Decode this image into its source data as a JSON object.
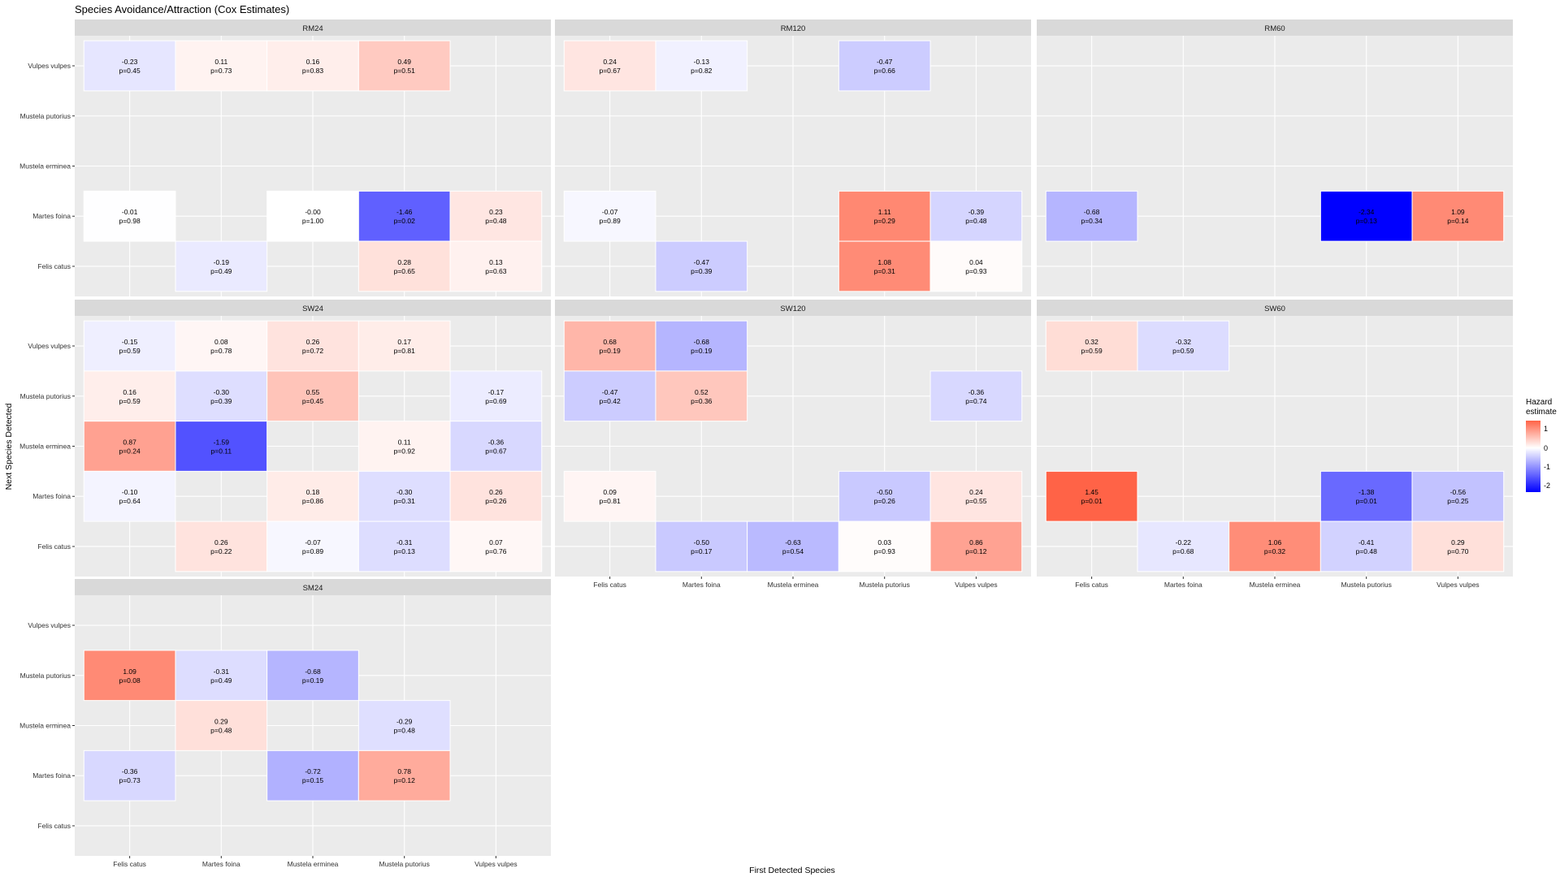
{
  "title": "Species Avoidance/Attraction (Cox Estimates)",
  "chart_data": {
    "type": "heatmap",
    "title": "Species Avoidance/Attraction (Cox Estimates)",
    "xlabel": "First Detected Species",
    "ylabel": "Next Species Detected",
    "x_categories": [
      "Felis catus",
      "Martes foina",
      "Mustela erminea",
      "Mustela putorius",
      "Vulpes vulpes"
    ],
    "y_categories": [
      "Vulpes vulpes",
      "Mustela putorius",
      "Mustela erminea",
      "Martes foina",
      "Felis catus"
    ],
    "legend": {
      "title_lines": [
        "Hazard",
        "estimate"
      ],
      "ticks": [
        "1",
        "0",
        "-1",
        "-2"
      ],
      "tick_values": [
        1,
        0,
        -1,
        -2
      ],
      "range": [
        -2.34,
        1.45
      ],
      "colors": {
        "low": "#0000ff",
        "mid": "#ffffff",
        "high": "#ff6347"
      }
    },
    "panels": [
      {
        "name": "RM24",
        "cells": [
          {
            "x": "Felis catus",
            "y": "Vulpes vulpes",
            "estimate": -0.23,
            "label": "-0.23",
            "p": "p=0.45"
          },
          {
            "x": "Martes foina",
            "y": "Vulpes vulpes",
            "estimate": 0.11,
            "label": "0.11",
            "p": "p=0.73"
          },
          {
            "x": "Mustela erminea",
            "y": "Vulpes vulpes",
            "estimate": 0.16,
            "label": "0.16",
            "p": "p=0.83"
          },
          {
            "x": "Mustela putorius",
            "y": "Vulpes vulpes",
            "estimate": 0.49,
            "label": "0.49",
            "p": "p=0.51"
          },
          {
            "x": "Felis catus",
            "y": "Martes foina",
            "estimate": -0.01,
            "label": "-0.01",
            "p": "p=0.98"
          },
          {
            "x": "Mustela erminea",
            "y": "Martes foina",
            "estimate": 0.0,
            "label": "-0.00",
            "p": "p=1.00"
          },
          {
            "x": "Mustela putorius",
            "y": "Martes foina",
            "estimate": -1.46,
            "label": "-1.46",
            "p": "p=0.02"
          },
          {
            "x": "Vulpes vulpes",
            "y": "Martes foina",
            "estimate": 0.23,
            "label": "0.23",
            "p": "p=0.48"
          },
          {
            "x": "Martes foina",
            "y": "Felis catus",
            "estimate": -0.19,
            "label": "-0.19",
            "p": "p=0.49"
          },
          {
            "x": "Mustela putorius",
            "y": "Felis catus",
            "estimate": 0.28,
            "label": "0.28",
            "p": "p=0.65"
          },
          {
            "x": "Vulpes vulpes",
            "y": "Felis catus",
            "estimate": 0.13,
            "label": "0.13",
            "p": "p=0.63"
          }
        ]
      },
      {
        "name": "RM120",
        "cells": [
          {
            "x": "Felis catus",
            "y": "Vulpes vulpes",
            "estimate": 0.24,
            "label": "0.24",
            "p": "p=0.67"
          },
          {
            "x": "Martes foina",
            "y": "Vulpes vulpes",
            "estimate": -0.13,
            "label": "-0.13",
            "p": "p=0.82"
          },
          {
            "x": "Mustela putorius",
            "y": "Vulpes vulpes",
            "estimate": -0.47,
            "label": "-0.47",
            "p": "p=0.66"
          },
          {
            "x": "Felis catus",
            "y": "Martes foina",
            "estimate": -0.07,
            "label": "-0.07",
            "p": "p=0.89"
          },
          {
            "x": "Mustela putorius",
            "y": "Martes foina",
            "estimate": 1.11,
            "label": "1.11",
            "p": "p=0.29"
          },
          {
            "x": "Vulpes vulpes",
            "y": "Martes foina",
            "estimate": -0.39,
            "label": "-0.39",
            "p": "p=0.48"
          },
          {
            "x": "Martes foina",
            "y": "Felis catus",
            "estimate": -0.47,
            "label": "-0.47",
            "p": "p=0.39"
          },
          {
            "x": "Mustela putorius",
            "y": "Felis catus",
            "estimate": 1.08,
            "label": "1.08",
            "p": "p=0.31"
          },
          {
            "x": "Vulpes vulpes",
            "y": "Felis catus",
            "estimate": 0.04,
            "label": "0.04",
            "p": "p=0.93"
          }
        ]
      },
      {
        "name": "RM60",
        "cells": [
          {
            "x": "Felis catus",
            "y": "Martes foina",
            "estimate": -0.68,
            "label": "-0.68",
            "p": "p=0.34"
          },
          {
            "x": "Mustela putorius",
            "y": "Martes foina",
            "estimate": -2.34,
            "label": "-2.34",
            "p": "p=0.13"
          },
          {
            "x": "Vulpes vulpes",
            "y": "Martes foina",
            "estimate": 1.09,
            "label": "1.09",
            "p": "p=0.14"
          }
        ]
      },
      {
        "name": "SW24",
        "cells": [
          {
            "x": "Felis catus",
            "y": "Vulpes vulpes",
            "estimate": -0.15,
            "label": "-0.15",
            "p": "p=0.59"
          },
          {
            "x": "Martes foina",
            "y": "Vulpes vulpes",
            "estimate": 0.08,
            "label": "0.08",
            "p": "p=0.78"
          },
          {
            "x": "Mustela erminea",
            "y": "Vulpes vulpes",
            "estimate": 0.26,
            "label": "0.26",
            "p": "p=0.72"
          },
          {
            "x": "Mustela putorius",
            "y": "Vulpes vulpes",
            "estimate": 0.17,
            "label": "0.17",
            "p": "p=0.81"
          },
          {
            "x": "Felis catus",
            "y": "Mustela putorius",
            "estimate": 0.16,
            "label": "0.16",
            "p": "p=0.59"
          },
          {
            "x": "Martes foina",
            "y": "Mustela putorius",
            "estimate": -0.3,
            "label": "-0.30",
            "p": "p=0.39"
          },
          {
            "x": "Mustela erminea",
            "y": "Mustela putorius",
            "estimate": 0.55,
            "label": "0.55",
            "p": "p=0.45"
          },
          {
            "x": "Vulpes vulpes",
            "y": "Mustela putorius",
            "estimate": -0.17,
            "label": "-0.17",
            "p": "p=0.69"
          },
          {
            "x": "Felis catus",
            "y": "Mustela erminea",
            "estimate": 0.87,
            "label": "0.87",
            "p": "p=0.24"
          },
          {
            "x": "Martes foina",
            "y": "Mustela erminea",
            "estimate": -1.59,
            "label": "-1.59",
            "p": "p=0.11"
          },
          {
            "x": "Mustela putorius",
            "y": "Mustela erminea",
            "estimate": 0.11,
            "label": "0.11",
            "p": "p=0.92"
          },
          {
            "x": "Vulpes vulpes",
            "y": "Mustela erminea",
            "estimate": -0.36,
            "label": "-0.36",
            "p": "p=0.67"
          },
          {
            "x": "Felis catus",
            "y": "Martes foina",
            "estimate": -0.1,
            "label": "-0.10",
            "p": "p=0.64"
          },
          {
            "x": "Mustela erminea",
            "y": "Martes foina",
            "estimate": 0.18,
            "label": "0.18",
            "p": "p=0.86"
          },
          {
            "x": "Mustela putorius",
            "y": "Martes foina",
            "estimate": -0.3,
            "label": "-0.30",
            "p": "p=0.31"
          },
          {
            "x": "Vulpes vulpes",
            "y": "Martes foina",
            "estimate": 0.26,
            "label": "0.26",
            "p": "p=0.26"
          },
          {
            "x": "Martes foina",
            "y": "Felis catus",
            "estimate": 0.26,
            "label": "0.26",
            "p": "p=0.22"
          },
          {
            "x": "Mustela erminea",
            "y": "Felis catus",
            "estimate": -0.07,
            "label": "-0.07",
            "p": "p=0.89"
          },
          {
            "x": "Mustela putorius",
            "y": "Felis catus",
            "estimate": -0.31,
            "label": "-0.31",
            "p": "p=0.13"
          },
          {
            "x": "Vulpes vulpes",
            "y": "Felis catus",
            "estimate": 0.07,
            "label": "0.07",
            "p": "p=0.76"
          }
        ]
      },
      {
        "name": "SW120",
        "cells": [
          {
            "x": "Felis catus",
            "y": "Vulpes vulpes",
            "estimate": 0.68,
            "label": "0.68",
            "p": "p=0.19"
          },
          {
            "x": "Martes foina",
            "y": "Vulpes vulpes",
            "estimate": -0.68,
            "label": "-0.68",
            "p": "p=0.19"
          },
          {
            "x": "Felis catus",
            "y": "Mustela putorius",
            "estimate": -0.47,
            "label": "-0.47",
            "p": "p=0.42"
          },
          {
            "x": "Martes foina",
            "y": "Mustela putorius",
            "estimate": 0.52,
            "label": "0.52",
            "p": "p=0.36"
          },
          {
            "x": "Vulpes vulpes",
            "y": "Mustela putorius",
            "estimate": -0.36,
            "label": "-0.36",
            "p": "p=0.74"
          },
          {
            "x": "Felis catus",
            "y": "Martes foina",
            "estimate": 0.09,
            "label": "0.09",
            "p": "p=0.81"
          },
          {
            "x": "Mustela putorius",
            "y": "Martes foina",
            "estimate": -0.5,
            "label": "-0.50",
            "p": "p=0.26"
          },
          {
            "x": "Vulpes vulpes",
            "y": "Martes foina",
            "estimate": 0.24,
            "label": "0.24",
            "p": "p=0.55"
          },
          {
            "x": "Martes foina",
            "y": "Felis catus",
            "estimate": -0.5,
            "label": "-0.50",
            "p": "p=0.17"
          },
          {
            "x": "Mustela erminea",
            "y": "Felis catus",
            "estimate": -0.63,
            "label": "-0.63",
            "p": "p=0.54"
          },
          {
            "x": "Mustela putorius",
            "y": "Felis catus",
            "estimate": 0.03,
            "label": "0.03",
            "p": "p=0.93"
          },
          {
            "x": "Vulpes vulpes",
            "y": "Felis catus",
            "estimate": 0.86,
            "label": "0.86",
            "p": "p=0.12"
          }
        ]
      },
      {
        "name": "SW60",
        "cells": [
          {
            "x": "Felis catus",
            "y": "Vulpes vulpes",
            "estimate": 0.32,
            "label": "0.32",
            "p": "p=0.59"
          },
          {
            "x": "Martes foina",
            "y": "Vulpes vulpes",
            "estimate": -0.32,
            "label": "-0.32",
            "p": "p=0.59"
          },
          {
            "x": "Felis catus",
            "y": "Martes foina",
            "estimate": 1.45,
            "label": "1.45",
            "p": "p=0.01"
          },
          {
            "x": "Mustela putorius",
            "y": "Martes foina",
            "estimate": -1.38,
            "label": "-1.38",
            "p": "p=0.01"
          },
          {
            "x": "Vulpes vulpes",
            "y": "Martes foina",
            "estimate": -0.56,
            "label": "-0.56",
            "p": "p=0.25"
          },
          {
            "x": "Martes foina",
            "y": "Felis catus",
            "estimate": -0.22,
            "label": "-0.22",
            "p": "p=0.68"
          },
          {
            "x": "Mustela erminea",
            "y": "Felis catus",
            "estimate": 1.06,
            "label": "1.06",
            "p": "p=0.32"
          },
          {
            "x": "Mustela putorius",
            "y": "Felis catus",
            "estimate": -0.41,
            "label": "-0.41",
            "p": "p=0.48"
          },
          {
            "x": "Vulpes vulpes",
            "y": "Felis catus",
            "estimate": 0.29,
            "label": "0.29",
            "p": "p=0.70"
          }
        ]
      },
      {
        "name": "SM24",
        "cells": [
          {
            "x": "Felis catus",
            "y": "Mustela putorius",
            "estimate": 1.09,
            "label": "1.09",
            "p": "p=0.08"
          },
          {
            "x": "Martes foina",
            "y": "Mustela putorius",
            "estimate": -0.31,
            "label": "-0.31",
            "p": "p=0.49"
          },
          {
            "x": "Mustela erminea",
            "y": "Mustela putorius",
            "estimate": -0.68,
            "label": "-0.68",
            "p": "p=0.19"
          },
          {
            "x": "Martes foina",
            "y": "Mustela erminea",
            "estimate": 0.29,
            "label": "0.29",
            "p": "p=0.48"
          },
          {
            "x": "Mustela putorius",
            "y": "Mustela erminea",
            "estimate": -0.29,
            "label": "-0.29",
            "p": "p=0.48"
          },
          {
            "x": "Felis catus",
            "y": "Martes foina",
            "estimate": -0.36,
            "label": "-0.36",
            "p": "p=0.73"
          },
          {
            "x": "Mustela erminea",
            "y": "Martes foina",
            "estimate": -0.72,
            "label": "-0.72",
            "p": "p=0.15"
          },
          {
            "x": "Mustela putorius",
            "y": "Martes foina",
            "estimate": 0.78,
            "label": "0.78",
            "p": "p=0.12"
          }
        ]
      }
    ]
  }
}
